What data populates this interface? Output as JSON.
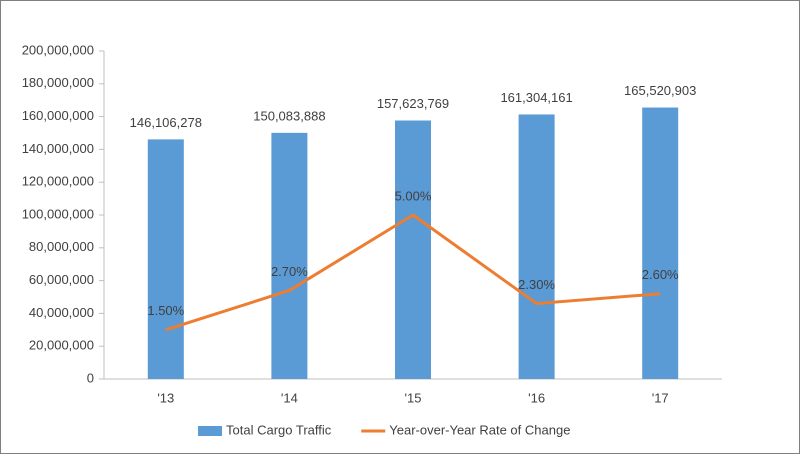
{
  "chart_data": {
    "type": "bar-line",
    "categories": [
      "'13",
      "'14",
      "'15",
      "'16",
      "'17"
    ],
    "series": [
      {
        "name": "Total Cargo Traffic",
        "type": "bar",
        "color": "#5b9bd5",
        "values": [
          146106278,
          150083888,
          157623769,
          161304161,
          165520903
        ],
        "value_labels": [
          "146,106,278",
          "150,083,888",
          "157,623,769",
          "161,304,161",
          "165,520,903"
        ]
      },
      {
        "name": "Year-over-Year Rate of Change",
        "type": "line",
        "axis": "y2",
        "color": "#ed7d31",
        "values": [
          1.5,
          2.7,
          5.0,
          2.3,
          2.6
        ],
        "value_labels": [
          "1.50%",
          "2.70%",
          "5.00%",
          "2.30%",
          "2.60%"
        ]
      }
    ],
    "ylim": [
      0,
      200000000
    ],
    "yticks": [
      0,
      {
        "value": 20000000,
        "label": "20,000,000"
      },
      {
        "value": 40000000,
        "label": "40,000,000"
      },
      {
        "value": 60000000,
        "label": "60,000,000"
      },
      {
        "value": 80000000,
        "label": "80,000,000"
      },
      {
        "value": 100000000,
        "label": "100,000,000"
      },
      {
        "value": 120000000,
        "label": "120,000,000"
      },
      {
        "value": 140000000,
        "label": "140,000,000"
      },
      {
        "value": 160000000,
        "label": "160,000,000"
      },
      {
        "value": 180000000,
        "label": "180,000,000"
      },
      {
        "value": 200000000,
        "label": "200,000,000"
      }
    ],
    "y2lim": [
      0,
      10
    ],
    "grid": false,
    "legend": "bottom"
  }
}
